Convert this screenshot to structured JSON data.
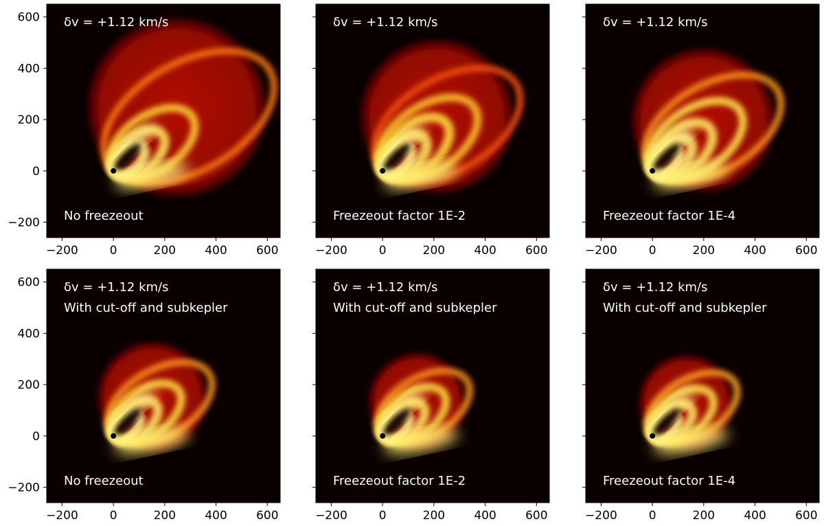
{
  "figure": {
    "background": "#ffffff",
    "panel_background": "#0b0000",
    "colormap": "hot",
    "colormap_stops": [
      "#000000",
      "#7a0000",
      "#e81a00",
      "#ff7a10",
      "#ffe640",
      "#ffffd0"
    ]
  },
  "chart_data": [
    {
      "type": "heatmap",
      "panel": "top-left",
      "annotations": [
        "δv = +1.12 km/s",
        "No freezeout"
      ],
      "xlim": [
        -260,
        650
      ],
      "ylim": [
        -260,
        650
      ],
      "xticks": [
        -200,
        0,
        200,
        400,
        600
      ],
      "yticks": [
        -200,
        0,
        200,
        400,
        600
      ],
      "xtick_labels": [
        "−200",
        "0",
        "200",
        "400",
        "600"
      ],
      "ytick_labels": [
        "−200",
        "0",
        "200",
        "400",
        "600"
      ],
      "show_yticklabels": true,
      "outer_radius": 700,
      "emission_arcs": [
        {
          "radius": 700,
          "intensity": 0.45
        },
        {
          "radius": 360,
          "intensity": 0.75
        },
        {
          "radius": 230,
          "intensity": 0.9
        },
        {
          "radius": 140,
          "intensity": 1.0
        }
      ]
    },
    {
      "type": "heatmap",
      "panel": "top-middle",
      "annotations": [
        "δv = +1.12 km/s",
        "Freezeout factor 1E-2"
      ],
      "xlim": [
        -260,
        650
      ],
      "ylim": [
        -260,
        650
      ],
      "xticks": [
        -200,
        0,
        200,
        400,
        600
      ],
      "yticks": [
        -200,
        0,
        200,
        400,
        600
      ],
      "xtick_labels": [
        "−200",
        "0",
        "200",
        "400",
        "600"
      ],
      "ytick_labels": [
        "−200",
        "0",
        "200",
        "400",
        "600"
      ],
      "show_yticklabels": false,
      "outer_radius": 600,
      "emission_arcs": [
        {
          "radius": 600,
          "intensity": 0.3
        },
        {
          "radius": 420,
          "intensity": 0.7
        },
        {
          "radius": 300,
          "intensity": 0.8
        },
        {
          "radius": 200,
          "intensity": 0.9
        },
        {
          "radius": 130,
          "intensity": 1.0
        }
      ]
    },
    {
      "type": "heatmap",
      "panel": "top-right",
      "annotations": [
        "δv = +1.12 km/s",
        "Freezeout factor 1E-4"
      ],
      "xlim": [
        -260,
        650
      ],
      "ylim": [
        -260,
        650
      ],
      "xticks": [
        -200,
        0,
        200,
        400,
        600
      ],
      "yticks": [
        -200,
        0,
        200,
        400,
        600
      ],
      "xtick_labels": [
        "−200",
        "0",
        "200",
        "400",
        "600"
      ],
      "ytick_labels": [
        "−200",
        "0",
        "200",
        "400",
        "600"
      ],
      "show_yticklabels": false,
      "outer_radius": 560,
      "emission_arcs": [
        {
          "radius": 560,
          "intensity": 0.55
        },
        {
          "radius": 400,
          "intensity": 0.85
        },
        {
          "radius": 270,
          "intensity": 0.9
        },
        {
          "radius": 180,
          "intensity": 0.95
        },
        {
          "radius": 120,
          "intensity": 1.0
        }
      ]
    },
    {
      "type": "heatmap",
      "panel": "bottom-left",
      "annotations": [
        "δv = +1.12 km/s",
        "With cut-off and subkepler",
        "No freezeout"
      ],
      "xlim": [
        -260,
        650
      ],
      "ylim": [
        -260,
        650
      ],
      "xticks": [
        -200,
        0,
        200,
        400,
        600
      ],
      "yticks": [
        -200,
        0,
        200,
        400,
        600
      ],
      "xtick_labels": [
        "−200",
        "0",
        "200",
        "400",
        "600"
      ],
      "ytick_labels": [
        "−200",
        "0",
        "200",
        "400",
        "600"
      ],
      "show_yticklabels": true,
      "outer_radius": 430,
      "emission_arcs": [
        {
          "radius": 430,
          "intensity": 0.55
        },
        {
          "radius": 300,
          "intensity": 0.8
        },
        {
          "radius": 200,
          "intensity": 0.92
        },
        {
          "radius": 120,
          "intensity": 1.0
        }
      ]
    },
    {
      "type": "heatmap",
      "panel": "bottom-middle",
      "annotations": [
        "δv = +1.12 km/s",
        "With cut-off and subkepler",
        "Freezeout factor 1E-2"
      ],
      "xlim": [
        -260,
        650
      ],
      "ylim": [
        -260,
        650
      ],
      "xticks": [
        -200,
        0,
        200,
        400,
        600
      ],
      "yticks": [
        -200,
        0,
        200,
        400,
        600
      ],
      "xtick_labels": [
        "−200",
        "0",
        "200",
        "400",
        "600"
      ],
      "ytick_labels": [
        "−200",
        "0",
        "200",
        "400",
        "600"
      ],
      "show_yticklabels": false,
      "outer_radius": 380,
      "emission_arcs": [
        {
          "radius": 380,
          "intensity": 0.55
        },
        {
          "radius": 280,
          "intensity": 0.8
        },
        {
          "radius": 190,
          "intensity": 0.9
        },
        {
          "radius": 120,
          "intensity": 1.0
        }
      ]
    },
    {
      "type": "heatmap",
      "panel": "bottom-right",
      "annotations": [
        "δv = +1.12 km/s",
        "With cut-off and subkepler",
        "Freezeout factor 1E-4"
      ],
      "xlim": [
        -260,
        650
      ],
      "ylim": [
        -260,
        650
      ],
      "xticks": [
        -200,
        0,
        200,
        400,
        600
      ],
      "yticks": [
        -200,
        0,
        200,
        400,
        600
      ],
      "xtick_labels": [
        "−200",
        "0",
        "200",
        "400",
        "600"
      ],
      "ytick_labels": [
        "−200",
        "0",
        "200",
        "400",
        "600"
      ],
      "show_yticklabels": false,
      "outer_radius": 370,
      "emission_arcs": [
        {
          "radius": 370,
          "intensity": 0.6
        },
        {
          "radius": 270,
          "intensity": 0.85
        },
        {
          "radius": 180,
          "intensity": 0.92
        },
        {
          "radius": 115,
          "intensity": 1.0
        }
      ]
    }
  ]
}
